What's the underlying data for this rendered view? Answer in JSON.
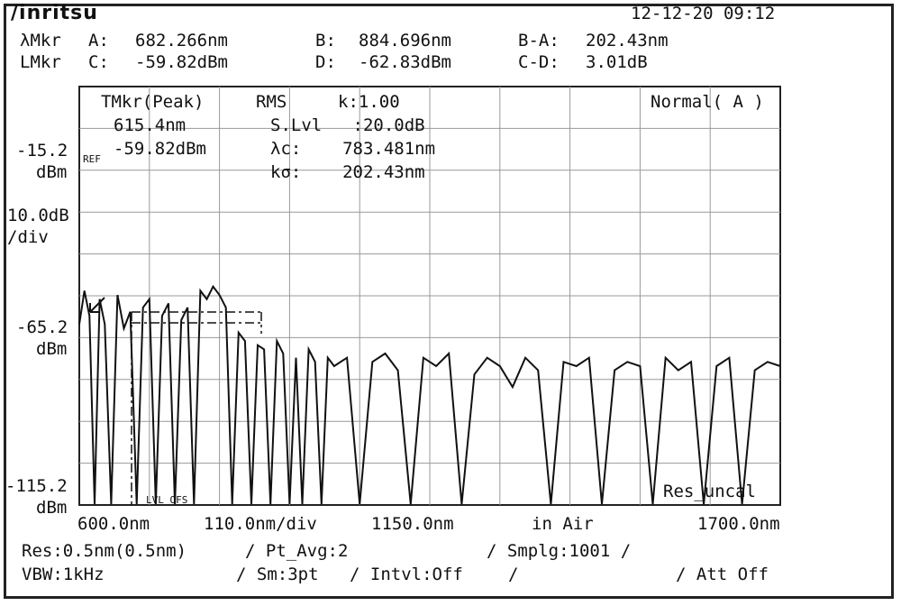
{
  "header": {
    "brand": "/inritsu",
    "datetime": "12-12-20 09:12"
  },
  "markers": {
    "lambda_label": "λMkr",
    "level_label": "LMkr",
    "a_label": "A:",
    "a_value": "682.266nm",
    "b_label": "B:",
    "b_value": "884.696nm",
    "ba_label": "B-A:",
    "ba_value": "202.43nm",
    "c_label": "C:",
    "c_value": "-59.82dBm",
    "d_label": "D:",
    "d_value": "-62.83dBm",
    "cd_label": "C-D:",
    "cd_value": "3.01dB"
  },
  "overlay": {
    "tmkr_title": "TMkr(Peak)",
    "tmkr_wavelength": "615.4nm",
    "tmkr_level": "-59.82dBm",
    "ref_tag": "REF",
    "rms_title": "RMS",
    "k_value": "k:1.00",
    "slvl": "S.Lvl   :20.0dB",
    "lambda_c": "λc:    783.481nm",
    "k_sigma": "kσ:    202.43nm",
    "mode": "Normal( A )",
    "res_flag": "Res_uncal",
    "lvl_ofs": "LVL OFS"
  },
  "y_axis": {
    "top_value": "-15.2",
    "top_unit": "dBm",
    "scale": "10.0dB",
    "scale_unit": "/div",
    "mid_value": "-65.2",
    "mid_unit": "dBm",
    "bottom_value": "-115.2",
    "bottom_unit": "dBm"
  },
  "x_axis": {
    "start": "600.0nm",
    "span_per_div": "110.0nm/div",
    "center": "1150.0nm",
    "medium": "in Air",
    "stop": "1700.0nm"
  },
  "footer": {
    "res": "Res:0.5nm(0.5nm)",
    "pt_avg": "/ Pt_Avg:2",
    "smplg": "/ Smplg:1001 /",
    "vbw": "VBW:1kHz",
    "sm": "/ Sm:3pt",
    "intvl": "/ Intvl:Off",
    "sep": "/",
    "att": "/ Att Off"
  },
  "chart_data": {
    "type": "line",
    "x_range_nm": [
      600,
      1700
    ],
    "y_range_dbm": [
      -115.2,
      -15.2
    ],
    "grid": true,
    "series": [
      {
        "x": [
          600,
          608,
          616,
          624,
          632,
          640,
          650,
          660,
          670,
          680,
          690,
          700,
          710,
          720,
          730,
          740,
          750,
          760,
          770,
          780,
          790,
          800,
          810,
          820,
          830,
          840,
          850,
          860,
          870,
          880,
          890,
          900,
          910,
          920,
          930,
          940,
          950,
          960,
          970,
          980,
          990,
          1000,
          1020,
          1040,
          1060,
          1080,
          1100,
          1120,
          1140,
          1160,
          1180,
          1200,
          1220,
          1240,
          1260,
          1280,
          1300,
          1320,
          1340,
          1360,
          1380,
          1400,
          1420,
          1440,
          1460,
          1480,
          1500,
          1520,
          1540,
          1560,
          1580,
          1600,
          1620,
          1640,
          1660,
          1680,
          1700
        ],
        "y": [
          -72,
          -64,
          -70,
          -115,
          -66,
          -72,
          -115,
          -65,
          -73,
          -69,
          -115,
          -68,
          -66,
          -115,
          -70,
          -67,
          -115,
          -71,
          -68,
          -115,
          -64,
          -66,
          -63,
          -65,
          -68,
          -115,
          -74,
          -76,
          -115,
          -77,
          -78,
          -115,
          -76,
          -79,
          -115,
          -80,
          -115,
          -78,
          -81,
          -115,
          -80,
          -82,
          -80,
          -115,
          -81,
          -79,
          -83,
          -115,
          -80,
          -82,
          -79,
          -115,
          -84,
          -80,
          -82,
          -87,
          -80,
          -83,
          -115,
          -81,
          -82,
          -80,
          -115,
          -83,
          -81,
          -82,
          -115,
          -80,
          -83,
          -81,
          -115,
          -82,
          -80,
          -115,
          -83,
          -81,
          -82
        ]
      }
    ]
  }
}
